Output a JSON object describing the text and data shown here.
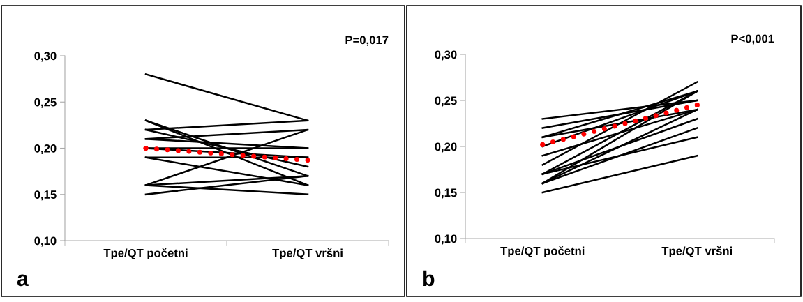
{
  "chart_data": [
    {
      "type": "line",
      "categories": [
        "Tpe/QT početni",
        "Tpe/QT vršni"
      ],
      "ylim": [
        0.1,
        0.3
      ],
      "yticks": [
        {
          "value": 0.1,
          "label": "0,10"
        },
        {
          "value": 0.15,
          "label": "0,15"
        },
        {
          "value": 0.2,
          "label": "0,20"
        },
        {
          "value": 0.25,
          "label": "0,25"
        },
        {
          "value": 0.3,
          "label": "0,30"
        }
      ],
      "grid": false,
      "legend": false,
      "marker": "none",
      "line_style": "solid",
      "annotations": [
        "P=0,017",
        "a"
      ],
      "series": [
        {
          "color": "#000000",
          "values": [
            0.28,
            0.23
          ]
        },
        {
          "color": "#000000",
          "values": [
            0.23,
            0.17
          ]
        },
        {
          "color": "#000000",
          "values": [
            0.23,
            0.16
          ]
        },
        {
          "color": "#000000",
          "values": [
            0.22,
            0.23
          ]
        },
        {
          "color": "#000000",
          "values": [
            0.22,
            0.18
          ]
        },
        {
          "color": "#000000",
          "values": [
            0.21,
            0.22
          ]
        },
        {
          "color": "#000000",
          "values": [
            0.21,
            0.2
          ]
        },
        {
          "color": "#000000",
          "values": [
            0.2,
            0.19
          ]
        },
        {
          "color": "#000000",
          "values": [
            0.2,
            0.2
          ]
        },
        {
          "color": "#000000",
          "values": [
            0.19,
            0.19
          ]
        },
        {
          "color": "#000000",
          "values": [
            0.19,
            0.16
          ]
        },
        {
          "color": "#000000",
          "values": [
            0.16,
            0.22
          ]
        },
        {
          "color": "#000000",
          "values": [
            0.16,
            0.17
          ]
        },
        {
          "color": "#000000",
          "values": [
            0.15,
            0.17
          ]
        },
        {
          "color": "#000000",
          "values": [
            0.16,
            0.15
          ]
        },
        {
          "type": "line",
          "color": "#ff0000",
          "line_style": "dotted",
          "values": [
            0.2,
            0.187
          ]
        }
      ]
    },
    {
      "type": "line",
      "categories": [
        "Tpe/QT početni",
        "Tpe/QT vršni"
      ],
      "ylim": [
        0.1,
        0.3
      ],
      "yticks": [
        {
          "value": 0.1,
          "label": "0,10"
        },
        {
          "value": 0.15,
          "label": "0,15"
        },
        {
          "value": 0.2,
          "label": "0,20"
        },
        {
          "value": 0.25,
          "label": "0,25"
        },
        {
          "value": 0.3,
          "label": "0,30"
        }
      ],
      "grid": false,
      "legend": false,
      "marker": "none",
      "line_style": "solid",
      "annotations": [
        "P<0,001",
        "b"
      ],
      "series": [
        {
          "color": "#000000",
          "values": [
            0.23,
            0.25
          ]
        },
        {
          "color": "#000000",
          "values": [
            0.22,
            0.25
          ]
        },
        {
          "color": "#000000",
          "values": [
            0.21,
            0.26
          ]
        },
        {
          "color": "#000000",
          "values": [
            0.21,
            0.24
          ]
        },
        {
          "color": "#000000",
          "values": [
            0.2,
            0.26
          ]
        },
        {
          "color": "#000000",
          "values": [
            0.19,
            0.24
          ]
        },
        {
          "color": "#000000",
          "values": [
            0.18,
            0.27
          ]
        },
        {
          "color": "#000000",
          "values": [
            0.17,
            0.26
          ]
        },
        {
          "color": "#000000",
          "values": [
            0.17,
            0.23
          ]
        },
        {
          "color": "#000000",
          "values": [
            0.17,
            0.21
          ]
        },
        {
          "color": "#000000",
          "values": [
            0.16,
            0.26
          ]
        },
        {
          "color": "#000000",
          "values": [
            0.16,
            0.24
          ]
        },
        {
          "color": "#000000",
          "values": [
            0.16,
            0.22
          ]
        },
        {
          "color": "#000000",
          "values": [
            0.15,
            0.19
          ]
        },
        {
          "type": "line",
          "color": "#ff0000",
          "line_style": "dotted",
          "values": [
            0.202,
            0.245
          ]
        }
      ]
    }
  ]
}
